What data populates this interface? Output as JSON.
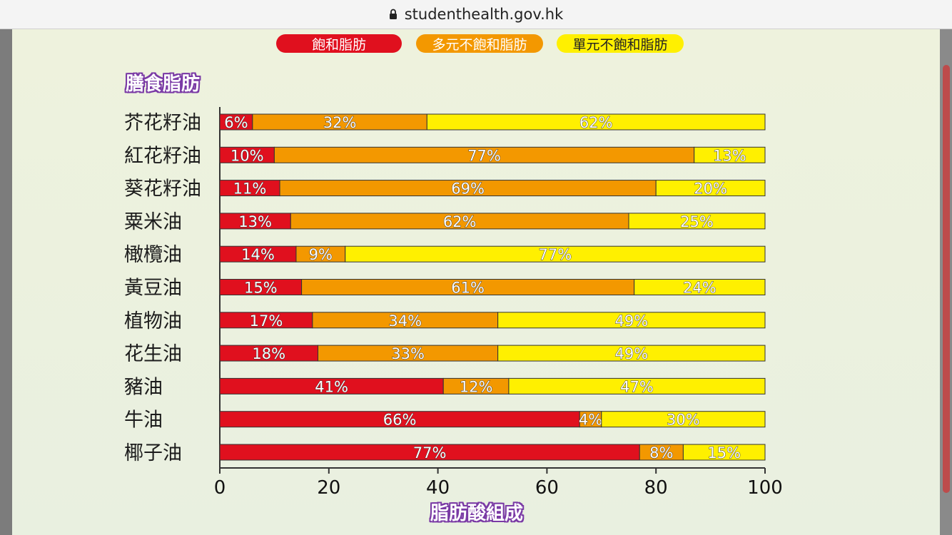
{
  "browser": {
    "url": "studenthealth.gov.hk"
  },
  "colors": {
    "saturated": "#e0101e",
    "poly": "#f39800",
    "mono": "#fff000",
    "heading_outline": "#7a3aa5"
  },
  "chart_data": {
    "type": "bar",
    "orientation": "horizontal",
    "stacked": true,
    "title": "膳食脂肪",
    "xlabel": "脂肪酸組成",
    "ylabel": "",
    "xlim": [
      0,
      100
    ],
    "xticks": [
      0,
      20,
      40,
      60,
      80,
      100
    ],
    "grid": false,
    "legend_position": "top",
    "categories": [
      "芥花籽油",
      "紅花籽油",
      "葵花籽油",
      "粟米油",
      "橄欖油",
      "黃豆油",
      "植物油",
      "花生油",
      "豬油",
      "牛油",
      "椰子油"
    ],
    "series": [
      {
        "name": "飽和脂肪",
        "color": "#e0101e",
        "values": [
          6,
          10,
          11,
          13,
          14,
          15,
          17,
          18,
          41,
          66,
          77
        ]
      },
      {
        "name": "多元不飽和脂肪",
        "color": "#f39800",
        "values": [
          32,
          77,
          69,
          62,
          9,
          61,
          34,
          33,
          12,
          4,
          8
        ]
      },
      {
        "name": "單元不飽和脂肪",
        "color": "#fff000",
        "values": [
          62,
          13,
          20,
          25,
          77,
          24,
          49,
          49,
          47,
          30,
          15
        ]
      }
    ]
  }
}
